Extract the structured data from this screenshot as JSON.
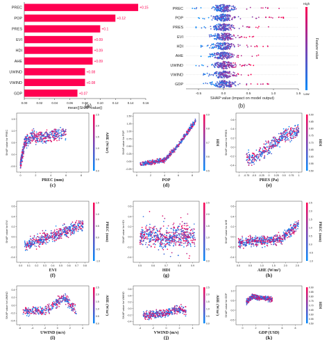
{
  "chart_data": [
    {
      "type": "bar",
      "panel_label": "(a)",
      "orientation": "horizontal",
      "categories": [
        "PREC",
        "POP",
        "PRES",
        "EVI",
        "HDI",
        "AHE",
        "UWIND",
        "VWIND",
        "GDP"
      ],
      "values": [
        0.15,
        0.12,
        0.1,
        0.09,
        0.09,
        0.09,
        0.08,
        0.08,
        0.07
      ],
      "value_labels": [
        "+0.15",
        "+0.12",
        "+0.1",
        "+0.09",
        "+0.09",
        "+0.09",
        "+0.08",
        "+0.08",
        "+0.07"
      ],
      "xlabel": "mean(|SHAP value|)",
      "xlim": [
        0,
        0.16
      ],
      "xticks": [
        "0.00",
        "0.02",
        "0.04",
        "0.06",
        "0.08",
        "0.10",
        "0.12",
        "0.14",
        "0.16"
      ],
      "bar_color": "#ff0051"
    },
    {
      "type": "scatter",
      "subtype": "beeswarm",
      "panel_label": "(b)",
      "features": [
        "PREC",
        "POP",
        "PRES",
        "EVI",
        "HDI",
        "AHE",
        "UWIND",
        "VWIND",
        "GDP"
      ],
      "xlabel": "SHAP value (impact on model output)",
      "xlim": [
        -0.75,
        1.5
      ],
      "xticks": [
        "-0.5",
        "0.0",
        "0.5",
        "1.0",
        "1.5"
      ],
      "colorbar": {
        "label": "Feature value",
        "high": "High",
        "low": "Low"
      }
    },
    {
      "type": "scatter",
      "panel_label": "(c)",
      "xlabel": "PREC (mm)",
      "ylabel": "SHAP value for PREC",
      "xticks": [
        "0",
        "2",
        "4",
        "6",
        "8"
      ],
      "xlim": [
        -0.5,
        9
      ],
      "yticks": [
        "1.5",
        "1.0",
        "0.5",
        "0.0",
        "-0.5"
      ],
      "ylim": [
        -0.75,
        1.75
      ],
      "colorbar": {
        "label": "AHE (W/m²)",
        "ticks": [
          "2.5",
          "2.0",
          "1.5",
          "1.0",
          "0.5",
          "0.0"
        ]
      }
    },
    {
      "type": "scatter",
      "panel_label": "(d)",
      "xlabel": "POP",
      "ylabel": "SHAP value for POP",
      "xticks": [
        "0",
        "2",
        "4",
        "6",
        "8"
      ],
      "xlim": [
        -0.5,
        9
      ],
      "yticks": [
        "1.50",
        "1.25",
        "1.00",
        "0.75",
        "0.50",
        "0.25",
        "0.00",
        "-0.25"
      ],
      "ylim": [
        -0.35,
        1.6
      ],
      "colorbar": {
        "label": "HDI",
        "ticks": [
          "0.9",
          "0.8",
          "0.7",
          "0.6",
          "0.5"
        ]
      }
    },
    {
      "type": "scatter",
      "panel_label": "(e)",
      "xlabel": "PRES (Pa)",
      "ylabel": "SHAP value for PRES",
      "xticks": [
        "-1",
        "-0.75",
        "-0.5",
        "-0.25",
        "0",
        "0.25",
        "0.5",
        "0.75",
        "1"
      ],
      "xlim": [
        -1.1,
        1.1
      ],
      "yticks": [
        "0.6",
        "0.4",
        "0.2",
        "0.0",
        "-0.2",
        "-0.4"
      ],
      "ylim": [
        -0.55,
        0.75
      ],
      "colorbar": {
        "label": "HDI",
        "ticks": [
          "0.90",
          "0.85",
          "0.80",
          "0.75",
          "0.70",
          "0.65",
          "0.60",
          "0.55",
          "0.50"
        ]
      }
    },
    {
      "type": "scatter",
      "panel_label": "(f)",
      "xlabel": "EVI",
      "ylabel": "SHAP value for EVI",
      "xticks": [
        "0.0",
        "0.1",
        "0.2",
        "0.3",
        "0.4",
        "0.5",
        "0.6",
        "0.7",
        "0.8"
      ],
      "xlim": [
        -0.05,
        0.85
      ],
      "yticks": [
        "0.6",
        "0.4",
        "0.2",
        "0.0",
        "-0.2",
        "-0.4"
      ],
      "ylim": [
        -0.5,
        0.7
      ],
      "colorbar": {
        "label": "PREC (mm)",
        "ticks": [
          "1.5",
          "1.0",
          "0.5",
          "0.0",
          "-0.5",
          "-1.0"
        ]
      }
    },
    {
      "type": "scatter",
      "panel_label": "(g)",
      "xlabel": "HDI",
      "ylabel": "SHAP value for HDI",
      "xticks": [
        "0.5",
        "0.6",
        "0.7",
        "0.8",
        "0.9"
      ],
      "xlim": [
        0.45,
        0.95
      ],
      "yticks": [
        "0.6",
        "0.4",
        "0.2",
        "0.0",
        "-0.2",
        "-0.4"
      ],
      "ylim": [
        -0.5,
        0.7
      ],
      "colorbar": {
        "label": "",
        "ticks": [
          "2.5",
          "2.0",
          "1.5",
          "1.0",
          "0.5",
          "0.0"
        ]
      }
    },
    {
      "type": "scatter",
      "panel_label": "(h)",
      "xlabel": "AHE (W/m²)",
      "ylabel": "SHAP value for AHE",
      "xticks": [
        "0.0",
        "0.5",
        "1.0",
        "1.5",
        "2.0",
        "2.5"
      ],
      "xlim": [
        -0.1,
        2.7
      ],
      "yticks": [
        "0.6",
        "0.4",
        "0.2",
        "0.0",
        "-0.2",
        "-0.4"
      ],
      "ylim": [
        -0.5,
        0.7
      ],
      "colorbar": {
        "label": "PREC (mm)",
        "ticks": [
          "2.5",
          "2.0",
          "1.5",
          "1.0",
          "0.5",
          "0.0",
          "-0.5",
          "-1.0"
        ]
      }
    },
    {
      "type": "scatter",
      "panel_label": "(i)",
      "xlabel": "UWIND (m/s)",
      "ylabel": "SHAP value for UWIND",
      "xticks": [
        "-6",
        "-4",
        "-2",
        "0",
        "2",
        "4"
      ],
      "xlim": [
        -6.5,
        5
      ],
      "yticks": [
        "0.4",
        "0.2",
        "0.0",
        "-0.2",
        "-0.4"
      ],
      "ylim": [
        -0.5,
        0.5
      ],
      "colorbar": {
        "label": "AHE (W/m²)",
        "ticks": [
          "2.5",
          "2.0",
          "1.5",
          "1.0",
          "0.5",
          "0.0"
        ]
      }
    },
    {
      "type": "scatter",
      "panel_label": "(j)",
      "xlabel": "VWIND (m/s)",
      "ylabel": "SHAP value for VWIND",
      "xticks": [
        "-4",
        "-2",
        "0",
        "2",
        "4"
      ],
      "xlim": [
        -5,
        5
      ],
      "yticks": [
        "0.6",
        "0.4",
        "0.2",
        "0.0",
        "-0.2",
        "-0.4"
      ],
      "ylim": [
        -0.5,
        0.7
      ],
      "colorbar": {
        "label": "AHE (W/m²)",
        "ticks": [
          "2.5",
          "2.0",
          "1.5",
          "1.0",
          "0.5",
          "0.0"
        ]
      }
    },
    {
      "type": "scatter",
      "panel_label": "(k)",
      "xlabel": "GDP (USD)",
      "ylabel": "SHAP value for GDP",
      "xticks": [
        "0",
        "2",
        "4",
        "6",
        "8"
      ],
      "xlim": [
        -1,
        9
      ],
      "yticks": [
        "1.0",
        "0.5",
        "0.0",
        "-0.5"
      ],
      "ylim": [
        -0.75,
        1.25
      ],
      "colorbar": {
        "label": "HDI",
        "ticks": [
          "0.90",
          "0.85",
          "0.80",
          "0.75",
          "0.70",
          "0.65",
          "0.60",
          "0.55",
          "0.50"
        ]
      }
    }
  ],
  "colors": {
    "high": "#ff0051",
    "low": "#008bfb",
    "mid": "#7c3fb0"
  }
}
